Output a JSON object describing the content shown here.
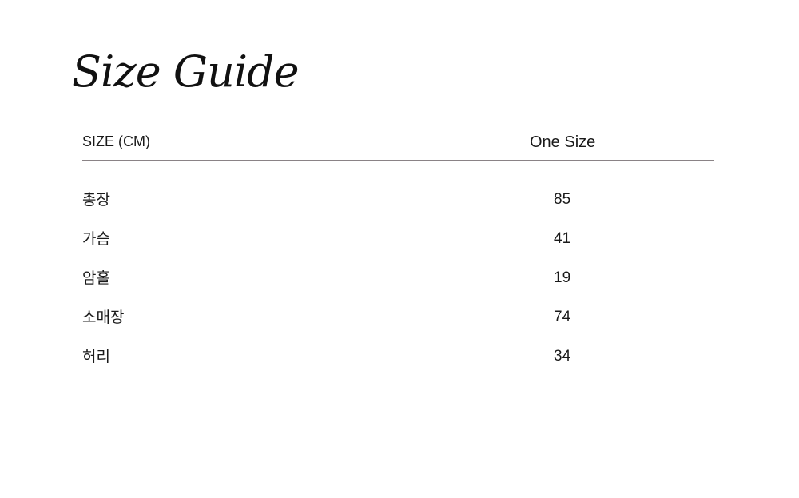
{
  "title": "Size Guide",
  "table": {
    "header": {
      "label": "SIZE (CM)",
      "column": "One Size"
    },
    "rows": [
      {
        "label": "총장",
        "value": "85"
      },
      {
        "label": "가슴",
        "value": "41"
      },
      {
        "label": "암홀",
        "value": "19"
      },
      {
        "label": "소매장",
        "value": "74"
      },
      {
        "label": "허리",
        "value": "34"
      }
    ]
  }
}
